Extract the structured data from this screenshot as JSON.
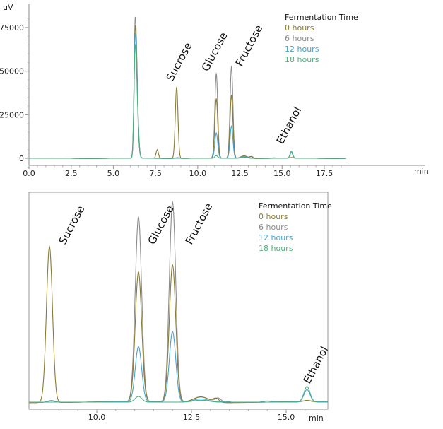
{
  "chart_data": [
    {
      "type": "line",
      "ylabel": "uV",
      "xlabel": "min",
      "xlim": [
        0,
        18.8
      ],
      "ylim": [
        -5000,
        82000
      ],
      "xticks": [
        "0.0",
        "2.5",
        "5.0",
        "7.5",
        "10.0",
        "12.5",
        "15.0",
        "17.5"
      ],
      "yticks": [
        "0",
        "25000",
        "50000",
        "75000"
      ],
      "legend": {
        "title": "Fermentation Time",
        "placement": "top-right"
      },
      "annotations": [
        {
          "text": "Sucrose",
          "x": 8.75
        },
        {
          "text": "Glucose",
          "x": 11.1
        },
        {
          "text": "Fructose",
          "x": 12.0
        },
        {
          "text": "Ethanol",
          "x": 15.55
        }
      ]
    },
    {
      "type": "line",
      "xlabel": "min",
      "xlim": [
        8.2,
        16.1
      ],
      "ylim": [
        -1800,
        55000
      ],
      "xticks": [
        "10.0",
        "12.5",
        "15.0"
      ],
      "legend": {
        "title": "Fermentation Time",
        "placement": "top-right"
      },
      "annotations": [
        {
          "text": "Sucrose",
          "x": 8.75
        },
        {
          "text": "Glucose",
          "x": 11.1
        },
        {
          "text": "Fructose",
          "x": 12.0
        },
        {
          "text": "Ethanol",
          "x": 15.55
        }
      ]
    }
  ],
  "series": [
    {
      "name": "0 hours",
      "color": "#8b7b2f",
      "peaks": [
        [
          6.3,
          76000,
          0.07
        ],
        [
          7.6,
          5000,
          0.07
        ],
        [
          8.75,
          41000,
          0.08
        ],
        [
          11.1,
          34000,
          0.085
        ],
        [
          12.0,
          36000,
          0.085
        ],
        [
          12.75,
          1500,
          0.2
        ],
        [
          13.15,
          1000,
          0.08
        ],
        [
          15.55,
          300,
          0.1
        ]
      ]
    },
    {
      "name": "6 hours",
      "color": "#8c8c8c",
      "peaks": [
        [
          6.3,
          81000,
          0.07
        ],
        [
          8.8,
          500,
          0.1
        ],
        [
          11.1,
          48500,
          0.085
        ],
        [
          12.0,
          52500,
          0.085
        ],
        [
          12.75,
          1400,
          0.2
        ],
        [
          13.2,
          1100,
          0.08
        ],
        [
          15.55,
          300,
          0.1
        ]
      ]
    },
    {
      "name": "12 hours",
      "color": "#45a2d4",
      "peaks": [
        [
          6.3,
          72000,
          0.07
        ],
        [
          8.8,
          400,
          0.1
        ],
        [
          11.1,
          14500,
          0.085
        ],
        [
          12.0,
          18500,
          0.085
        ],
        [
          12.75,
          900,
          0.2
        ],
        [
          13.4,
          300,
          0.1
        ],
        [
          14.5,
          300,
          0.1
        ],
        [
          15.55,
          3200,
          0.08
        ]
      ]
    },
    {
      "name": "18 hours",
      "color": "#4bb07c",
      "peaks": [
        [
          6.3,
          65000,
          0.07
        ],
        [
          11.1,
          1500,
          0.09
        ],
        [
          12.75,
          500,
          0.2
        ],
        [
          15.55,
          4100,
          0.08
        ]
      ]
    }
  ]
}
